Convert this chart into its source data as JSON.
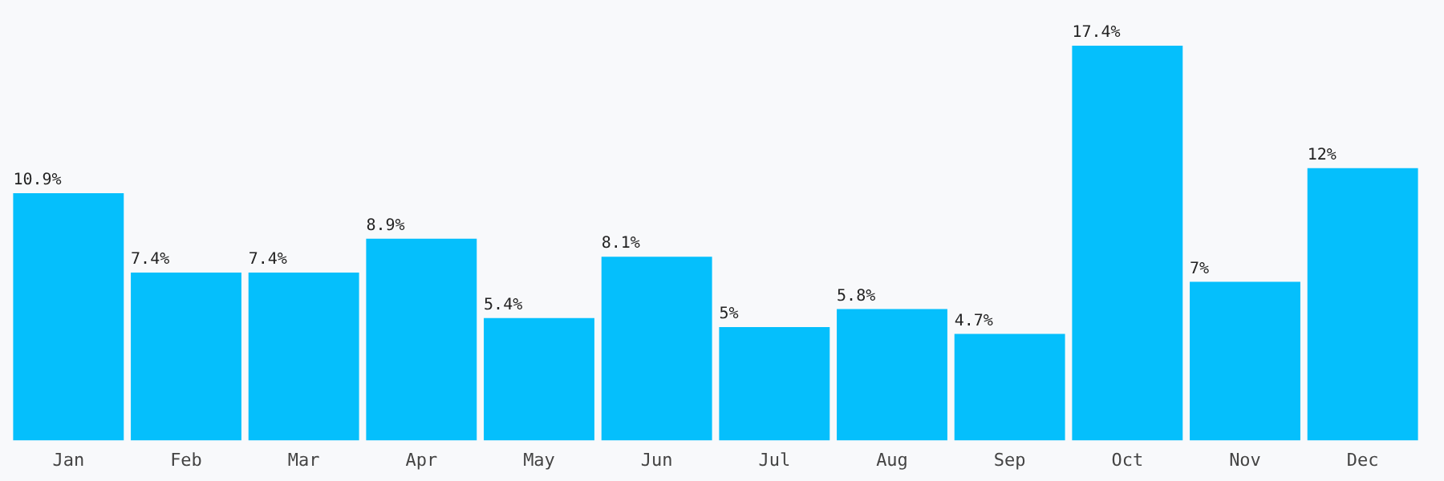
{
  "chart_data": {
    "type": "bar",
    "categories": [
      "Jan",
      "Feb",
      "Mar",
      "Apr",
      "May",
      "Jun",
      "Jul",
      "Aug",
      "Sep",
      "Oct",
      "Nov",
      "Dec"
    ],
    "values": [
      10.9,
      7.4,
      7.4,
      8.9,
      5.4,
      8.1,
      5,
      5.8,
      4.7,
      17.4,
      7,
      12
    ],
    "value_labels": [
      "10.9%",
      "7.4%",
      "7.4%",
      "8.9%",
      "5.4%",
      "8.1%",
      "5%",
      "5.8%",
      "4.7%",
      "17.4%",
      "7%",
      "12%"
    ],
    "color": "#05bffc",
    "grid": false,
    "legend": false,
    "tick_labels": "x"
  }
}
